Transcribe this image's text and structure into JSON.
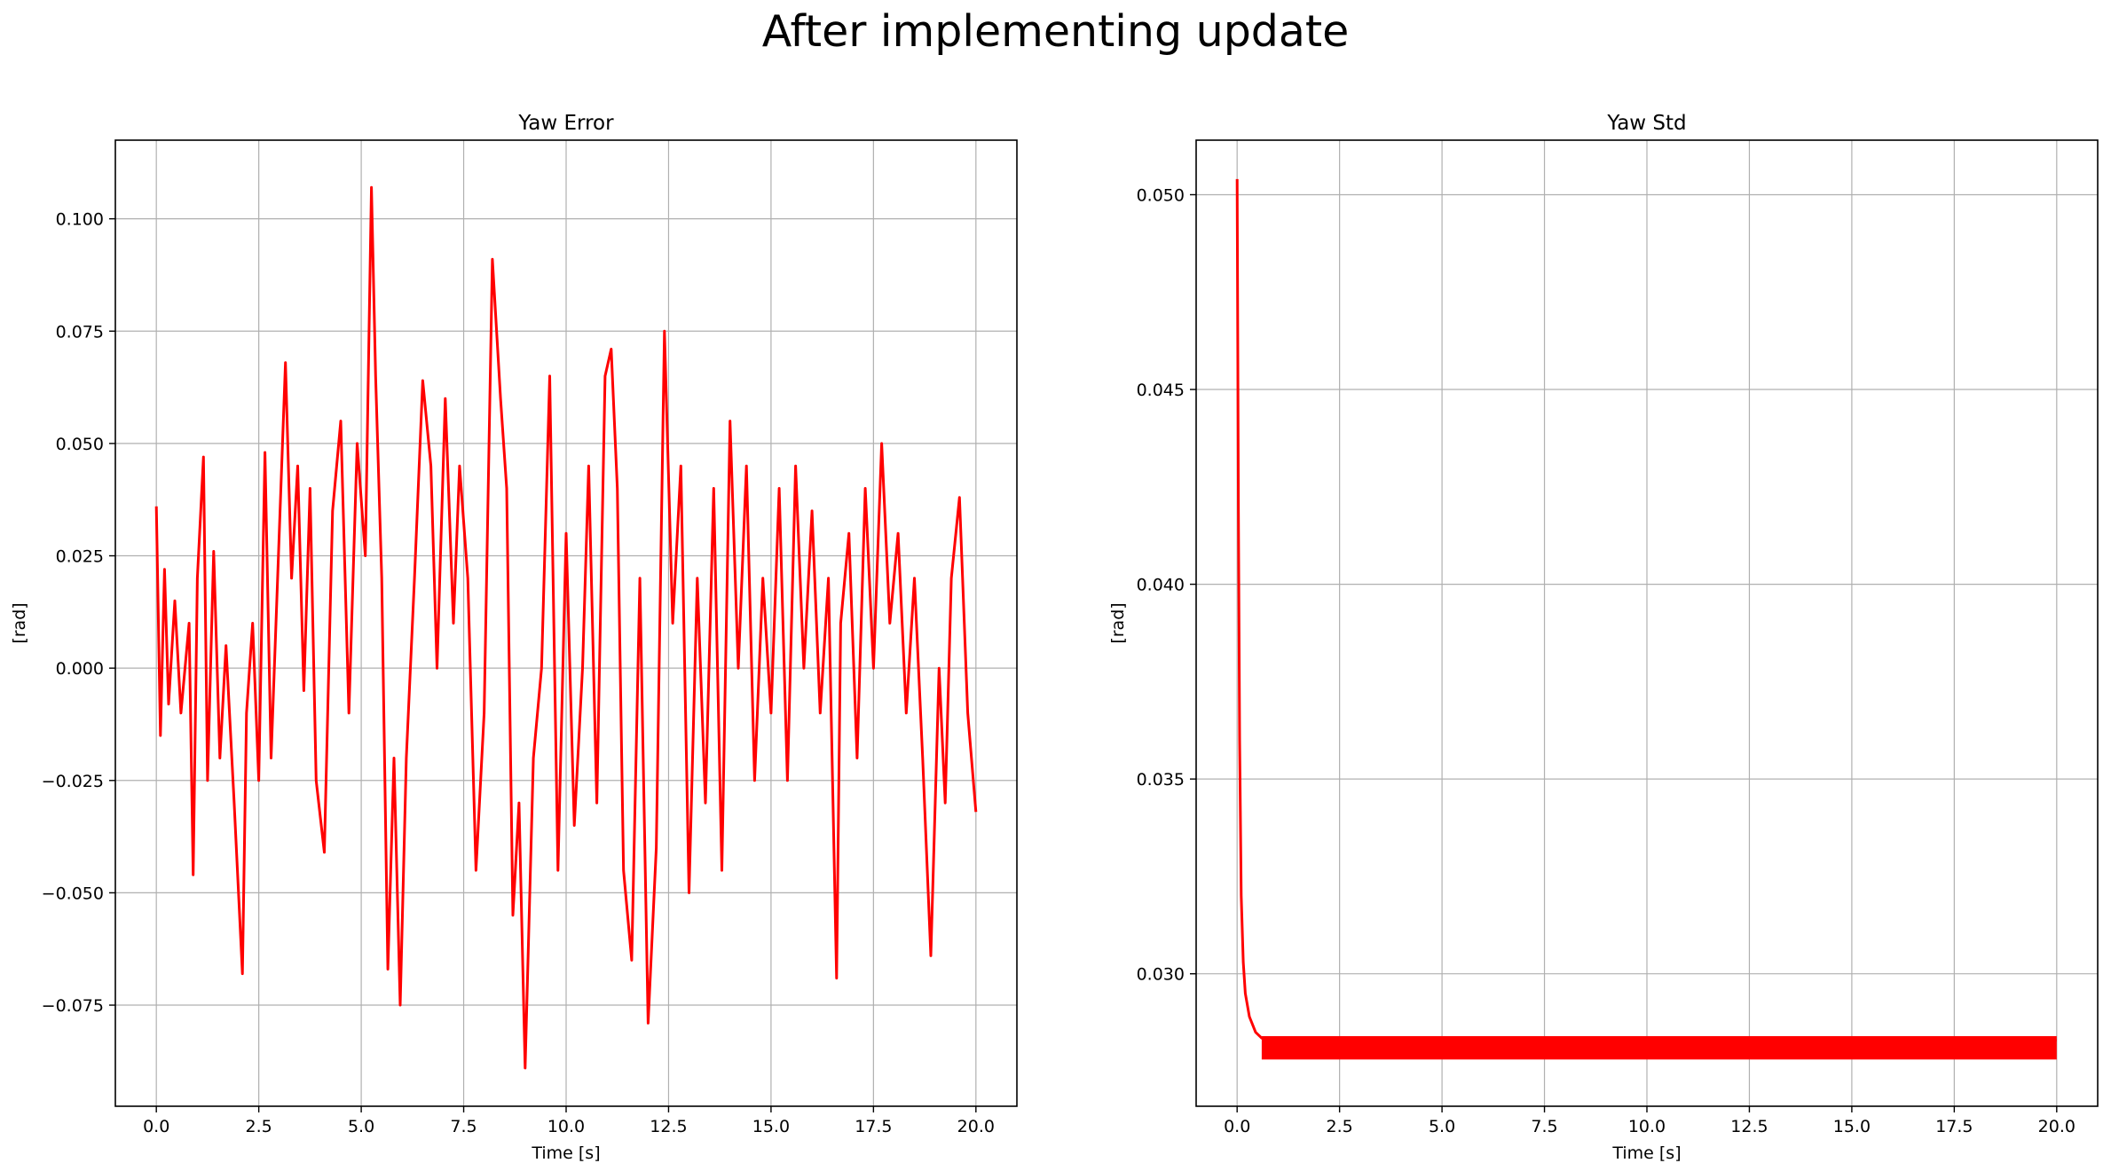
{
  "figure_title": "After implementing update",
  "chart_data": [
    {
      "type": "line",
      "title": "Yaw Error",
      "xlabel": "Time [s]",
      "ylabel": "[rad]",
      "xlim": [
        -1.0,
        21.0
      ],
      "ylim": [
        -0.0975,
        0.1175
      ],
      "xticks": [
        "0.0",
        "2.5",
        "5.0",
        "7.5",
        "10.0",
        "12.5",
        "15.0",
        "17.5",
        "20.0"
      ],
      "xtick_values": [
        0,
        2.5,
        5,
        7.5,
        10,
        12.5,
        15,
        17.5,
        20
      ],
      "yticks": [
        "−0.075",
        "−0.050",
        "−0.025",
        "0.000",
        "0.025",
        "0.050",
        "0.075",
        "0.100"
      ],
      "ytick_values": [
        -0.075,
        -0.05,
        -0.025,
        0,
        0.025,
        0.05,
        0.075,
        0.1
      ],
      "grid": true,
      "color": "#ff0000",
      "series": [
        {
          "x": [
            0.0,
            0.1,
            0.2,
            0.3,
            0.45,
            0.6,
            0.8,
            0.9,
            1.0,
            1.15,
            1.25,
            1.4,
            1.55,
            1.7,
            1.9,
            2.1,
            2.2,
            2.35,
            2.5,
            2.65,
            2.8,
            3.0,
            3.15,
            3.3,
            3.45,
            3.6,
            3.75,
            3.9,
            4.1,
            4.3,
            4.5,
            4.7,
            4.9,
            5.1,
            5.25,
            5.35,
            5.5,
            5.65,
            5.8,
            5.95,
            6.1,
            6.3,
            6.5,
            6.7,
            6.85,
            7.05,
            7.25,
            7.4,
            7.6,
            7.8,
            8.0,
            8.2,
            8.4,
            8.55,
            8.7,
            8.85,
            9.0,
            9.2,
            9.4,
            9.6,
            9.8,
            10.0,
            10.2,
            10.4,
            10.55,
            10.75,
            10.95,
            11.1,
            11.25,
            11.4,
            11.6,
            11.8,
            12.0,
            12.2,
            12.4,
            12.6,
            12.8,
            13.0,
            13.2,
            13.4,
            13.6,
            13.8,
            14.0,
            14.2,
            14.4,
            14.6,
            14.8,
            15.0,
            15.2,
            15.4,
            15.6,
            15.8,
            16.0,
            16.2,
            16.4,
            16.6,
            16.7,
            16.9,
            17.1,
            17.3,
            17.5,
            17.7,
            17.9,
            18.1,
            18.3,
            18.5,
            18.7,
            18.9,
            19.1,
            19.25,
            19.4,
            19.6,
            19.8,
            20.0
          ],
          "y": [
            0.036,
            -0.015,
            0.022,
            -0.008,
            0.015,
            -0.01,
            0.01,
            -0.046,
            0.02,
            0.047,
            -0.025,
            0.026,
            -0.02,
            0.005,
            -0.03,
            -0.068,
            -0.01,
            0.01,
            -0.025,
            0.048,
            -0.02,
            0.03,
            0.068,
            0.02,
            0.045,
            -0.005,
            0.04,
            -0.025,
            -0.041,
            0.035,
            0.055,
            -0.01,
            0.05,
            0.025,
            0.107,
            0.065,
            0.02,
            -0.067,
            -0.02,
            -0.075,
            -0.02,
            0.02,
            0.064,
            0.045,
            0.0,
            0.06,
            0.01,
            0.045,
            0.02,
            -0.045,
            -0.01,
            0.091,
            0.06,
            0.04,
            -0.055,
            -0.03,
            -0.089,
            -0.02,
            0.0,
            0.065,
            -0.045,
            0.03,
            -0.035,
            0.0,
            0.045,
            -0.03,
            0.065,
            0.071,
            0.04,
            -0.045,
            -0.065,
            0.02,
            -0.079,
            -0.04,
            0.075,
            0.01,
            0.045,
            -0.05,
            0.02,
            -0.03,
            0.04,
            -0.045,
            0.055,
            0.0,
            0.045,
            -0.025,
            0.02,
            -0.01,
            0.04,
            -0.025,
            0.045,
            0.0,
            0.035,
            -0.01,
            0.02,
            -0.069,
            0.01,
            0.03,
            -0.02,
            0.04,
            0.0,
            0.05,
            0.01,
            0.03,
            -0.01,
            0.02,
            -0.02,
            -0.064,
            0.0,
            -0.03,
            0.02,
            0.038,
            -0.01,
            -0.032
          ]
        }
      ]
    },
    {
      "type": "line",
      "title": "Yaw Std",
      "xlabel": "Time [s]",
      "ylabel": "[rad]",
      "xlim": [
        -1.0,
        21.0
      ],
      "ylim": [
        0.0266,
        0.0514
      ],
      "xticks": [
        "0.0",
        "2.5",
        "5.0",
        "7.5",
        "10.0",
        "12.5",
        "15.0",
        "17.5",
        "20.0"
      ],
      "xtick_values": [
        0,
        2.5,
        5,
        7.5,
        10,
        12.5,
        15,
        17.5,
        20
      ],
      "yticks": [
        "0.030",
        "0.035",
        "0.040",
        "0.045",
        "0.050"
      ],
      "ytick_values": [
        0.03,
        0.035,
        0.04,
        0.045,
        0.05
      ],
      "grid": true,
      "color": "#ff0000",
      "series": [
        {
          "x": [
            0.0,
            0.03,
            0.06,
            0.1,
            0.15,
            0.2,
            0.3,
            0.45,
            0.6,
            1.0,
            5.0,
            10.0,
            15.0,
            20.0
          ],
          "y": [
            0.0504,
            0.042,
            0.036,
            0.032,
            0.0303,
            0.0295,
            0.0289,
            0.0285,
            0.02835,
            0.0283,
            0.0283,
            0.0283,
            0.0283,
            0.0283
          ],
          "band_lower": 0.0278,
          "band_upper": 0.0284,
          "band_start": 0.6
        }
      ]
    }
  ]
}
